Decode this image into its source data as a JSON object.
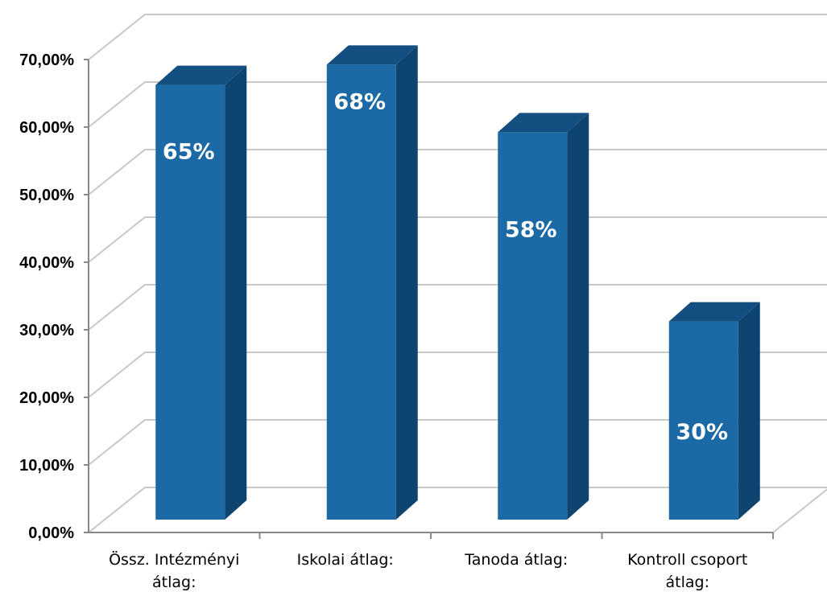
{
  "chart_data": {
    "type": "bar",
    "title": "",
    "xlabel": "",
    "ylabel": "",
    "categories": [
      [
        "Össz. Intézményi",
        "átlag:"
      ],
      [
        "Iskolai átlag:"
      ],
      [
        "Tanoda átlag:"
      ],
      [
        "Kontroll csoport",
        "átlag:"
      ]
    ],
    "values": [
      0.65,
      0.68,
      0.58,
      0.3
    ],
    "data_labels": [
      "65%",
      "68%",
      "58%",
      "30%"
    ],
    "yticks": [
      "0,00%",
      "10,00%",
      "20,00%",
      "30,00%",
      "40,00%",
      "50,00%",
      "60,00%",
      "70,00%"
    ],
    "ylim": [
      0,
      0.7
    ],
    "grid": true,
    "legend": "none",
    "colors": {
      "bar_front": "#1b6aa5",
      "bar_side": "#0d4470",
      "bar_top": "#134f80",
      "grid": "#c8c8c8",
      "axis": "#888888"
    }
  }
}
